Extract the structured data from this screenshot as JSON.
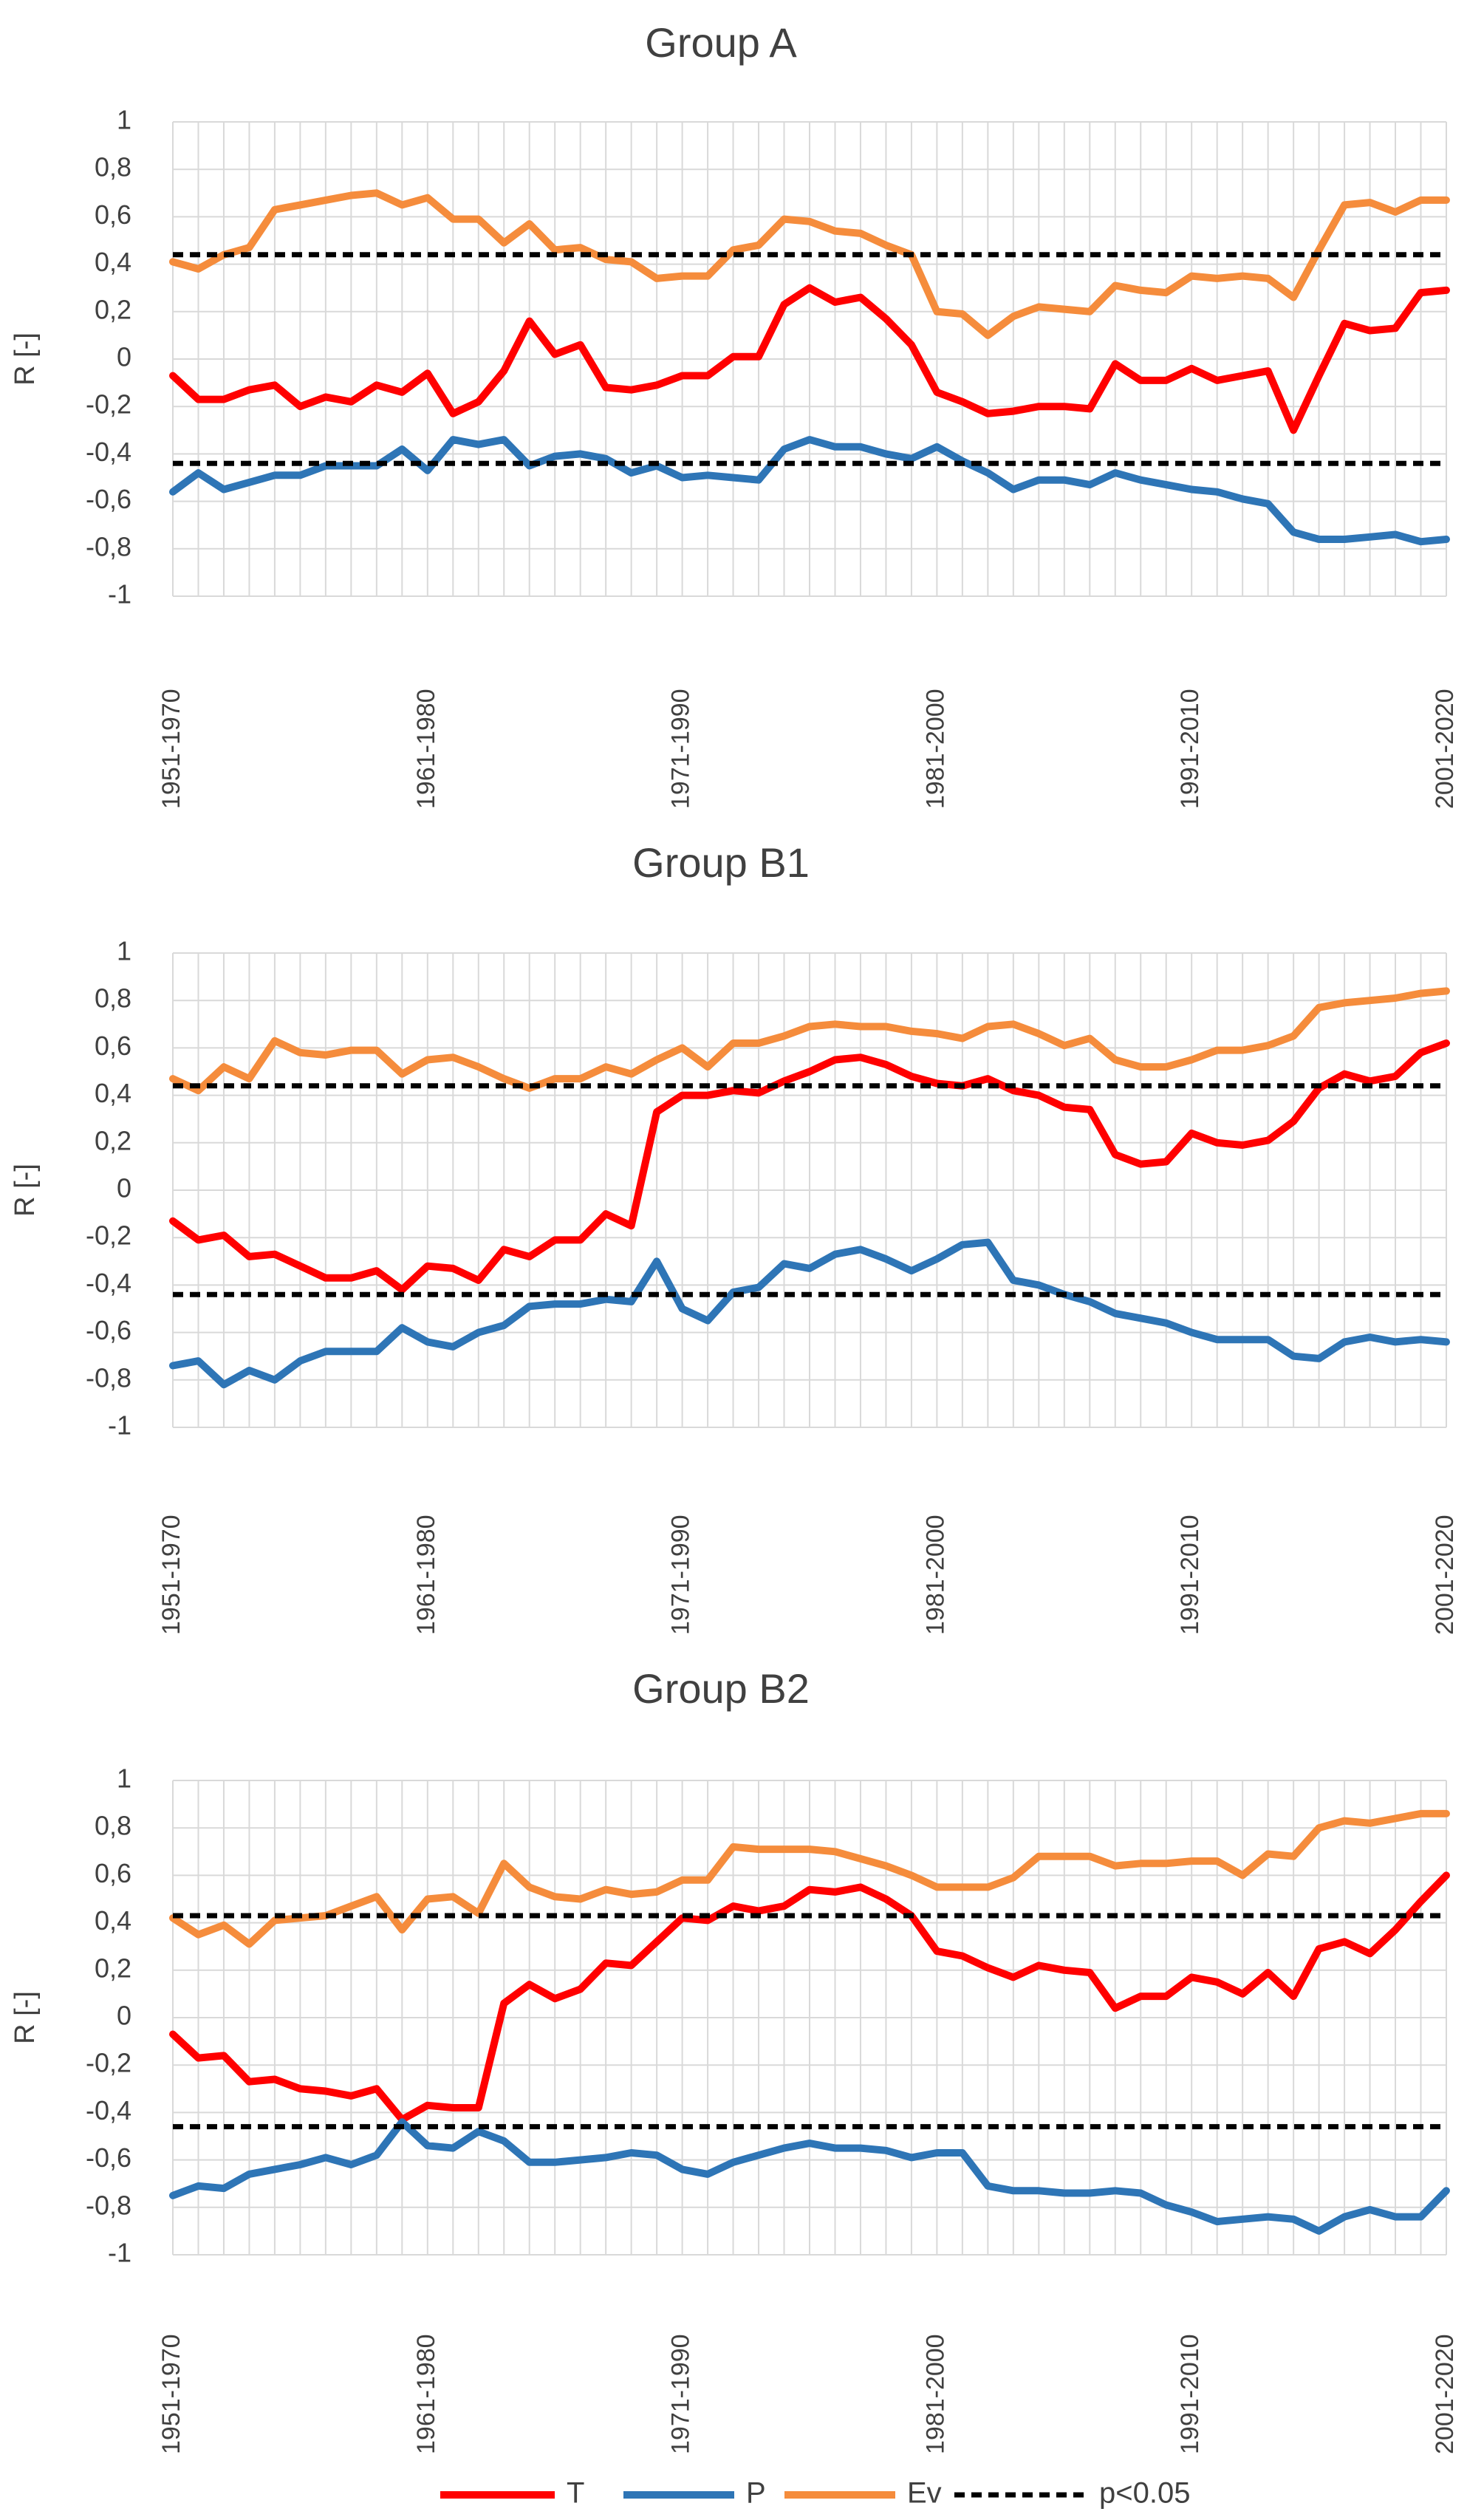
{
  "colors": {
    "T": "#ff0000",
    "P": "#2e75b6",
    "Ev": "#f58c3c",
    "sig": "#000000",
    "grid": "#d9d9d9",
    "text": "#404040"
  },
  "legend": {
    "items": [
      {
        "key": "T",
        "label": "T"
      },
      {
        "key": "P",
        "label": "P"
      },
      {
        "key": "Ev",
        "label": "Ev"
      },
      {
        "key": "sig",
        "label": "p<0.05"
      }
    ]
  },
  "chart_data": [
    {
      "type": "line",
      "title": "Group A",
      "ylabel": "R [-]",
      "ylim": [
        -1,
        1
      ],
      "yticks": [
        "1",
        "0,8",
        "0,6",
        "0,4",
        "0,2",
        "0",
        "-0,2",
        "-0,4",
        "-0,6",
        "-0,8",
        "-1"
      ],
      "xticks": [
        {
          "index": 0,
          "label": "1951-1970"
        },
        {
          "index": 10,
          "label": "1961-1980"
        },
        {
          "index": 20,
          "label": "1971-1990"
        },
        {
          "index": 30,
          "label": "1981-2000"
        },
        {
          "index": 40,
          "label": "1991-2010"
        },
        {
          "index": 50,
          "label": "2001-2020"
        }
      ],
      "significance": [
        0.44,
        -0.44
      ],
      "series": [
        {
          "name": "T",
          "values": [
            -0.07,
            -0.17,
            -0.17,
            -0.13,
            -0.11,
            -0.2,
            -0.16,
            -0.18,
            -0.11,
            -0.14,
            -0.06,
            -0.23,
            -0.18,
            -0.05,
            0.16,
            0.02,
            0.06,
            -0.12,
            -0.13,
            -0.11,
            -0.07,
            -0.07,
            0.01,
            0.01,
            0.23,
            0.3,
            0.24,
            0.26,
            0.17,
            0.06,
            -0.14,
            -0.18,
            -0.23,
            -0.22,
            -0.2,
            -0.2,
            -0.21,
            -0.02,
            -0.09,
            -0.09,
            -0.04,
            -0.09,
            -0.07,
            -0.05,
            -0.3,
            -0.07,
            0.15,
            0.12,
            0.13,
            0.28,
            0.29
          ]
        },
        {
          "name": "P",
          "values": [
            -0.56,
            -0.48,
            -0.55,
            -0.52,
            -0.49,
            -0.49,
            -0.45,
            -0.45,
            -0.45,
            -0.38,
            -0.47,
            -0.34,
            -0.36,
            -0.34,
            -0.45,
            -0.41,
            -0.4,
            -0.42,
            -0.48,
            -0.45,
            -0.5,
            -0.49,
            -0.5,
            -0.51,
            -0.38,
            -0.34,
            -0.37,
            -0.37,
            -0.4,
            -0.42,
            -0.37,
            -0.43,
            -0.48,
            -0.55,
            -0.51,
            -0.51,
            -0.53,
            -0.48,
            -0.51,
            -0.53,
            -0.55,
            -0.56,
            -0.59,
            -0.61,
            -0.73,
            -0.76,
            -0.76,
            -0.75,
            -0.74,
            -0.77,
            -0.76
          ]
        },
        {
          "name": "Ev",
          "values": [
            0.41,
            0.38,
            0.44,
            0.47,
            0.63,
            0.65,
            0.67,
            0.69,
            0.7,
            0.65,
            0.68,
            0.59,
            0.59,
            0.49,
            0.57,
            0.46,
            0.47,
            0.42,
            0.41,
            0.34,
            0.35,
            0.35,
            0.46,
            0.48,
            0.59,
            0.58,
            0.54,
            0.53,
            0.48,
            0.44,
            0.2,
            0.19,
            0.1,
            0.18,
            0.22,
            0.21,
            0.2,
            0.31,
            0.29,
            0.28,
            0.35,
            0.34,
            0.35,
            0.34,
            0.26,
            0.46,
            0.65,
            0.66,
            0.62,
            0.67,
            0.67
          ]
        }
      ]
    },
    {
      "type": "line",
      "title": "Group B1",
      "ylabel": "R [-]",
      "ylim": [
        -1,
        1
      ],
      "yticks": [
        "1",
        "0,8",
        "0,6",
        "0,4",
        "0,2",
        "0",
        "-0,2",
        "-0,4",
        "-0,6",
        "-0,8",
        "-1"
      ],
      "xticks": [
        {
          "index": 0,
          "label": "1951-1970"
        },
        {
          "index": 10,
          "label": "1961-1980"
        },
        {
          "index": 20,
          "label": "1971-1990"
        },
        {
          "index": 30,
          "label": "1981-2000"
        },
        {
          "index": 40,
          "label": "1991-2010"
        },
        {
          "index": 50,
          "label": "2001-2020"
        }
      ],
      "significance": [
        0.44,
        -0.44
      ],
      "series": [
        {
          "name": "T",
          "values": [
            -0.13,
            -0.21,
            -0.19,
            -0.28,
            -0.27,
            -0.32,
            -0.37,
            -0.37,
            -0.34,
            -0.42,
            -0.32,
            -0.33,
            -0.38,
            -0.25,
            -0.28,
            -0.21,
            -0.21,
            -0.1,
            -0.15,
            0.33,
            0.4,
            0.4,
            0.42,
            0.41,
            0.46,
            0.5,
            0.55,
            0.56,
            0.53,
            0.48,
            0.45,
            0.44,
            0.47,
            0.42,
            0.4,
            0.35,
            0.34,
            0.15,
            0.11,
            0.12,
            0.24,
            0.2,
            0.19,
            0.21,
            0.29,
            0.43,
            0.49,
            0.46,
            0.48,
            0.58,
            0.62
          ]
        },
        {
          "name": "P",
          "values": [
            -0.74,
            -0.72,
            -0.82,
            -0.76,
            -0.8,
            -0.72,
            -0.68,
            -0.68,
            -0.68,
            -0.58,
            -0.64,
            -0.66,
            -0.6,
            -0.57,
            -0.49,
            -0.48,
            -0.48,
            -0.46,
            -0.47,
            -0.3,
            -0.5,
            -0.55,
            -0.43,
            -0.41,
            -0.31,
            -0.33,
            -0.27,
            -0.25,
            -0.29,
            -0.34,
            -0.29,
            -0.23,
            -0.22,
            -0.38,
            -0.4,
            -0.44,
            -0.47,
            -0.52,
            -0.54,
            -0.56,
            -0.6,
            -0.63,
            -0.63,
            -0.63,
            -0.7,
            -0.71,
            -0.64,
            -0.62,
            -0.64,
            -0.63,
            -0.64
          ]
        },
        {
          "name": "Ev",
          "values": [
            0.47,
            0.42,
            0.52,
            0.47,
            0.63,
            0.58,
            0.57,
            0.59,
            0.59,
            0.49,
            0.55,
            0.56,
            0.52,
            0.47,
            0.43,
            0.47,
            0.47,
            0.52,
            0.49,
            0.55,
            0.6,
            0.52,
            0.62,
            0.62,
            0.65,
            0.69,
            0.7,
            0.69,
            0.69,
            0.67,
            0.66,
            0.64,
            0.69,
            0.7,
            0.66,
            0.61,
            0.64,
            0.55,
            0.52,
            0.52,
            0.55,
            0.59,
            0.59,
            0.61,
            0.65,
            0.77,
            0.79,
            0.8,
            0.81,
            0.83,
            0.84
          ]
        }
      ]
    },
    {
      "type": "line",
      "title": "Group B2",
      "ylabel": "R [-]",
      "ylim": [
        -1,
        1
      ],
      "yticks": [
        "1",
        "0,8",
        "0,6",
        "0,4",
        "0,2",
        "0",
        "-0,2",
        "-0,4",
        "-0,6",
        "-0,8",
        "-1"
      ],
      "xticks": [
        {
          "index": 0,
          "label": "1951-1970"
        },
        {
          "index": 10,
          "label": "1961-1980"
        },
        {
          "index": 20,
          "label": "1971-1990"
        },
        {
          "index": 30,
          "label": "1981-2000"
        },
        {
          "index": 40,
          "label": "1991-2010"
        },
        {
          "index": 50,
          "label": "2001-2020"
        }
      ],
      "significance": [
        0.43,
        -0.46
      ],
      "series": [
        {
          "name": "T",
          "values": [
            -0.07,
            -0.17,
            -0.16,
            -0.27,
            -0.26,
            -0.3,
            -0.31,
            -0.33,
            -0.3,
            -0.43,
            -0.37,
            -0.38,
            -0.38,
            0.06,
            0.14,
            0.08,
            0.12,
            0.23,
            0.22,
            0.32,
            0.42,
            0.41,
            0.47,
            0.45,
            0.47,
            0.54,
            0.53,
            0.55,
            0.5,
            0.43,
            0.28,
            0.26,
            0.21,
            0.17,
            0.22,
            0.2,
            0.19,
            0.04,
            0.09,
            0.09,
            0.17,
            0.15,
            0.1,
            0.19,
            0.09,
            0.29,
            0.32,
            0.27,
            0.37,
            0.49,
            0.6
          ]
        },
        {
          "name": "P",
          "values": [
            -0.75,
            -0.71,
            -0.72,
            -0.66,
            -0.64,
            -0.62,
            -0.59,
            -0.62,
            -0.58,
            -0.44,
            -0.54,
            -0.55,
            -0.48,
            -0.52,
            -0.61,
            -0.61,
            -0.6,
            -0.59,
            -0.57,
            -0.58,
            -0.64,
            -0.66,
            -0.61,
            -0.58,
            -0.55,
            -0.53,
            -0.55,
            -0.55,
            -0.56,
            -0.59,
            -0.57,
            -0.57,
            -0.71,
            -0.73,
            -0.73,
            -0.74,
            -0.74,
            -0.73,
            -0.74,
            -0.79,
            -0.82,
            -0.86,
            -0.85,
            -0.84,
            -0.85,
            -0.9,
            -0.84,
            -0.81,
            -0.84,
            -0.84,
            -0.73
          ]
        },
        {
          "name": "Ev",
          "values": [
            0.42,
            0.35,
            0.39,
            0.31,
            0.41,
            0.42,
            0.43,
            0.47,
            0.51,
            0.37,
            0.5,
            0.51,
            0.44,
            0.65,
            0.55,
            0.51,
            0.5,
            0.54,
            0.52,
            0.53,
            0.58,
            0.58,
            0.72,
            0.71,
            0.71,
            0.71,
            0.7,
            0.67,
            0.64,
            0.6,
            0.55,
            0.55,
            0.55,
            0.59,
            0.68,
            0.68,
            0.68,
            0.64,
            0.65,
            0.65,
            0.66,
            0.66,
            0.6,
            0.69,
            0.68,
            0.8,
            0.83,
            0.82,
            0.84,
            0.86,
            0.86
          ]
        }
      ]
    }
  ]
}
